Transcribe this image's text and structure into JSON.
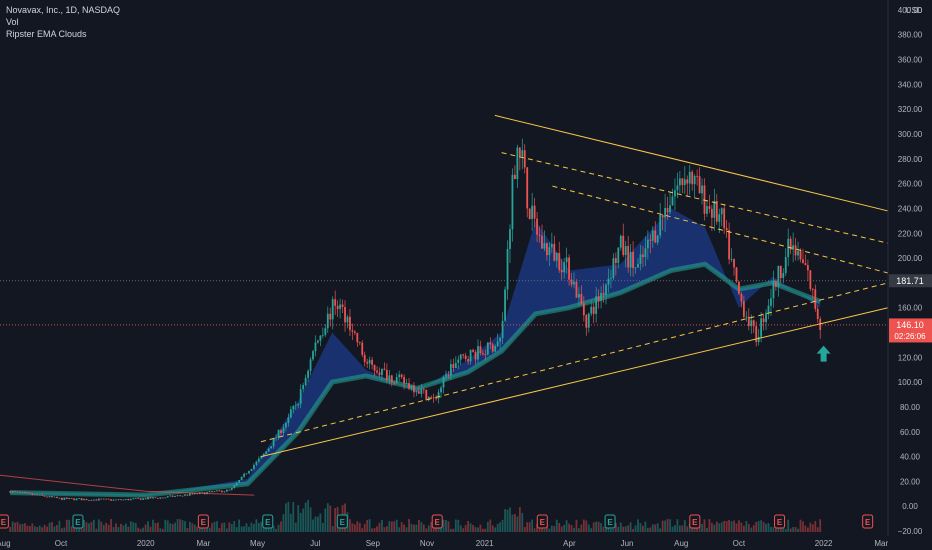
{
  "header": {
    "symbol_line": "Novavax, Inc., 1D, NASDAQ",
    "indicator_1": "Vol",
    "indicator_2": "Ripster EMA Clouds",
    "currency": "USD"
  },
  "price_badges": {
    "level_label": "181.71",
    "last_price": "146.10",
    "countdown": "02:26:06"
  },
  "colors": {
    "background": "#131722",
    "up": "#26a69a",
    "down": "#ef5350",
    "cloud_fast": "#2962ff",
    "cloud_slow": "#26a69a",
    "trendline": "#f7c548",
    "price_badge": "#ef5350"
  },
  "chart_data": {
    "type": "line",
    "title": "Novavax, Inc., 1D, NASDAQ",
    "y_ticks": [
      "400.00",
      "380.00",
      "360.00",
      "340.00",
      "320.00",
      "300.00",
      "280.00",
      "260.00",
      "240.00",
      "220.00",
      "200.00",
      "180.00",
      "160.00",
      "140.00",
      "120.00",
      "100.00",
      "80.00",
      "60.00",
      "40.00",
      "20.00",
      "0.00",
      "−20.00"
    ],
    "y_tick_values": [
      400,
      380,
      360,
      340,
      320,
      300,
      280,
      260,
      240,
      220,
      200,
      180,
      160,
      140,
      120,
      100,
      80,
      60,
      40,
      20,
      0,
      -20
    ],
    "x_ticks": [
      "Aug",
      "Oct",
      "2020",
      "Mar",
      "May",
      "Jul",
      "Sep",
      "Nov",
      "2021",
      "Apr",
      "Jun",
      "Aug",
      "Oct",
      "2022",
      "Mar"
    ],
    "x_tick_times": [
      2019.58,
      2019.75,
      2020.0,
      2020.17,
      2020.33,
      2020.5,
      2020.67,
      2020.83,
      2021.0,
      2021.25,
      2021.42,
      2021.58,
      2021.75,
      2022.0,
      2022.17
    ],
    "x_range": [
      2019.57,
      2022.19
    ],
    "y_range": [
      -24,
      408
    ],
    "series": [
      {
        "name": "Close",
        "x": [
          2019.6,
          2019.75,
          2019.92,
          2020.05,
          2020.15,
          2020.25,
          2020.3,
          2020.35,
          2020.4,
          2020.45,
          2020.5,
          2020.56,
          2020.6,
          2020.65,
          2020.72,
          2020.8,
          2020.85,
          2020.9,
          2020.95,
          2021.0,
          2021.05,
          2021.08,
          2021.1,
          2021.13,
          2021.17,
          2021.2,
          2021.25,
          2021.3,
          2021.35,
          2021.4,
          2021.45,
          2021.5,
          2021.55,
          2021.6,
          2021.65,
          2021.7,
          2021.75,
          2021.8,
          2021.85,
          2021.9,
          2021.95,
          2021.99
        ],
        "values": [
          12,
          6,
          5,
          7,
          10,
          13,
          28,
          42,
          62,
          85,
          130,
          165,
          150,
          115,
          105,
          95,
          85,
          112,
          122,
          125,
          135,
          255,
          300,
          240,
          210,
          205,
          190,
          150,
          175,
          210,
          190,
          220,
          250,
          270,
          245,
          230,
          170,
          135,
          175,
          210,
          190,
          146
        ]
      }
    ],
    "ema_cloud_fast": {
      "x": [
        2019.6,
        2020.0,
        2020.3,
        2020.45,
        2020.55,
        2020.65,
        2020.8,
        2020.95,
        2021.05,
        2021.15,
        2021.25,
        2021.4,
        2021.55,
        2021.65,
        2021.75,
        2021.85,
        2021.99
      ],
      "values": [
        10,
        8,
        22,
        85,
        140,
        110,
        92,
        118,
        140,
        230,
        190,
        195,
        240,
        225,
        160,
        185,
        160
      ]
    },
    "ema_cloud_slow": {
      "x": [
        2019.6,
        2020.0,
        2020.3,
        2020.45,
        2020.55,
        2020.65,
        2020.8,
        2020.95,
        2021.05,
        2021.15,
        2021.25,
        2021.4,
        2021.55,
        2021.65,
        2021.75,
        2021.85,
        2021.99
      ],
      "values": [
        11,
        9,
        18,
        60,
        100,
        105,
        95,
        108,
        125,
        155,
        160,
        172,
        190,
        195,
        175,
        180,
        165
      ]
    },
    "volume_scale_note": "",
    "trendlines": [
      {
        "style": "solid",
        "x": [
          2020.34,
          2022.19
        ],
        "y": [
          40,
          160
        ]
      },
      {
        "style": "dashed",
        "x": [
          2020.34,
          2022.19
        ],
        "y": [
          52,
          180
        ]
      },
      {
        "style": "solid",
        "x": [
          2021.03,
          2022.19
        ],
        "y": [
          315,
          238
        ]
      },
      {
        "style": "dashed",
        "x": [
          2021.05,
          2022.19
        ],
        "y": [
          285,
          212
        ]
      },
      {
        "style": "dashed",
        "x": [
          2021.2,
          2022.19
        ],
        "y": [
          258,
          188
        ]
      }
    ],
    "horizontal_levels": [
      {
        "value": 181.71,
        "style": "dotted",
        "color": "#787b86"
      },
      {
        "value": 146.1,
        "style": "dotted",
        "color": "#ef5350"
      }
    ],
    "earnings_markers": {
      "x": [
        2019.58,
        2019.8,
        2020.17,
        2020.36,
        2020.58,
        2020.86,
        2021.17,
        2021.37,
        2021.62,
        2021.87,
        2022.13
      ],
      "labels": [
        "E",
        "E",
        "E",
        "E",
        "E",
        "E",
        "E",
        "E",
        "E",
        "E",
        "E"
      ],
      "kinds": [
        "down",
        "up",
        "down",
        "up",
        "up",
        "down",
        "down",
        "up",
        "down",
        "down",
        "down"
      ]
    },
    "signal_arrow": {
      "x": 2022.0,
      "y": 123,
      "direction": "up"
    },
    "grid": false,
    "legend": "top-left"
  }
}
